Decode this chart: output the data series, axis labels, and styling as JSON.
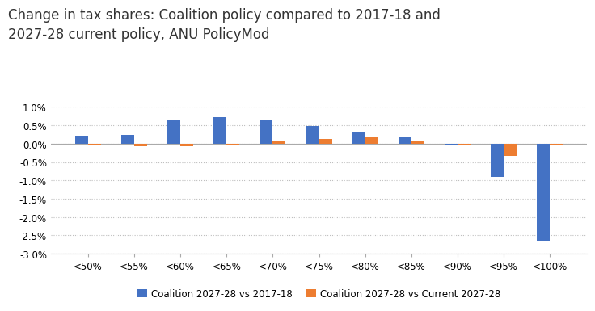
{
  "title": "Change in tax shares: Coalition policy compared to 2017-18 and\n2027-28 current policy, ANU PolicyMod",
  "categories": [
    "<50%",
    "<55%",
    "<60%",
    "<65%",
    "<70%",
    "<75%",
    "<80%",
    "<85%",
    "<90%",
    "<95%",
    "<100%"
  ],
  "blue_values": [
    0.22,
    0.25,
    0.65,
    0.72,
    0.63,
    0.48,
    0.32,
    0.18,
    -0.03,
    -0.9,
    -2.65
  ],
  "orange_values": [
    -0.04,
    -0.07,
    -0.07,
    -0.03,
    0.08,
    0.13,
    0.18,
    0.08,
    -0.02,
    -0.33,
    -0.04
  ],
  "blue_color": "#4472C4",
  "orange_color": "#ED7D31",
  "legend_blue": "Coalition 2027-28 vs 2017-18",
  "legend_orange": "Coalition 2027-28 vs Current 2027-28",
  "ylim": [
    -3.0,
    1.0
  ],
  "yticks": [
    1.0,
    0.5,
    0.0,
    -0.5,
    -1.0,
    -1.5,
    -2.0,
    -2.5,
    -3.0
  ],
  "background_color": "#ffffff",
  "grid_color": "#bfbfbf",
  "title_fontsize": 12,
  "tick_fontsize": 8.5,
  "legend_fontsize": 8.5,
  "bar_width": 0.28
}
